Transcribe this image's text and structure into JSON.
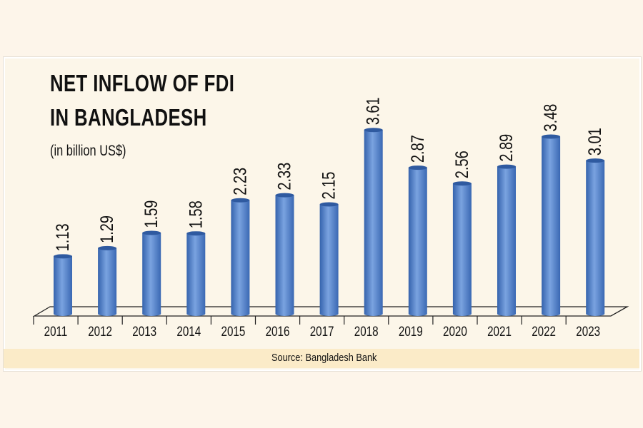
{
  "chart_data": {
    "type": "bar",
    "title": "NET INFLOW OF FDI IN BANGLADESH",
    "title_lines": [
      "NET INFLOW OF FDI",
      "IN BANGLADESH"
    ],
    "subtitle": "(in billion US$)",
    "categories": [
      "2011",
      "2012",
      "2013",
      "2014",
      "2015",
      "2016",
      "2017",
      "2018",
      "2019",
      "2020",
      "2021",
      "2022",
      "2023"
    ],
    "values": [
      1.13,
      1.29,
      1.59,
      1.58,
      2.23,
      2.33,
      2.15,
      3.61,
      2.87,
      2.56,
      2.89,
      3.48,
      3.01
    ],
    "value_labels": [
      "1.13",
      "1.29",
      "1.59",
      "1.58",
      "2.23",
      "2.33",
      "2.15",
      "3.61",
      "2.87",
      "2.56",
      "2.89",
      "3.48",
      "3.01"
    ],
    "xlabel": "",
    "ylabel": "",
    "ylim": [
      0,
      3.8
    ],
    "grid": false,
    "legend": "none",
    "source": "Source: Bangladesh Bank",
    "bar_color": "#4a78c2"
  }
}
